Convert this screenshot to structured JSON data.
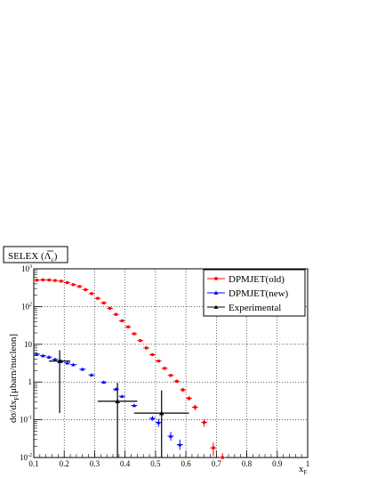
{
  "chart_data": {
    "type": "scatter",
    "title": "SELEX (",
    "title_particle": "Λ",
    "title_particle_sub": "c",
    "title_close": ")",
    "ylabel": "dσ/dx",
    "ylabel_sub": "F",
    "ylabel_rest": "[μbarn/nucleon]",
    "xlabel": "x",
    "xlabel_sub": "F",
    "xlim": [
      0.1,
      1.0
    ],
    "ylim": [
      0.01,
      1000
    ],
    "y_scale": "log",
    "grid": true,
    "legend_position": "top-right",
    "x_ticks": [
      {
        "value": 0.1,
        "label": "0.1"
      },
      {
        "value": 0.2,
        "label": "0.2"
      },
      {
        "value": 0.3,
        "label": "0.3"
      },
      {
        "value": 0.4,
        "label": "0.4"
      },
      {
        "value": 0.5,
        "label": "0.5"
      },
      {
        "value": 0.6,
        "label": "0.6"
      },
      {
        "value": 0.7,
        "label": "0.7"
      },
      {
        "value": 0.8,
        "label": "0.8"
      },
      {
        "value": 0.9,
        "label": "0.9"
      },
      {
        "value": 1.0,
        "label": "1"
      }
    ],
    "y_ticks": [
      {
        "value": 0.01,
        "base": "10",
        "exp": "-2"
      },
      {
        "value": 0.1,
        "base": "10",
        "exp": "-1"
      },
      {
        "value": 1,
        "base": "1",
        "exp": ""
      },
      {
        "value": 10,
        "base": "10",
        "exp": ""
      },
      {
        "value": 100,
        "base": "10",
        "exp": "2"
      },
      {
        "value": 1000,
        "base": "10",
        "exp": "3"
      }
    ],
    "series": [
      {
        "name": "DPMJET(old)",
        "color": "#ff0000",
        "marker": "square",
        "points": [
          {
            "x": 0.11,
            "y": 500,
            "xerr": 0.01,
            "ylo": 500,
            "yhi": 500
          },
          {
            "x": 0.13,
            "y": 510,
            "xerr": 0.01,
            "ylo": 510,
            "yhi": 510
          },
          {
            "x": 0.15,
            "y": 505,
            "xerr": 0.01,
            "ylo": 505,
            "yhi": 505
          },
          {
            "x": 0.17,
            "y": 490,
            "xerr": 0.01,
            "ylo": 490,
            "yhi": 490
          },
          {
            "x": 0.19,
            "y": 470,
            "xerr": 0.01,
            "ylo": 470,
            "yhi": 470
          },
          {
            "x": 0.21,
            "y": 430,
            "xerr": 0.01,
            "ylo": 430,
            "yhi": 430
          },
          {
            "x": 0.23,
            "y": 380,
            "xerr": 0.01,
            "ylo": 380,
            "yhi": 380
          },
          {
            "x": 0.25,
            "y": 340,
            "xerr": 0.01,
            "ylo": 340,
            "yhi": 340
          },
          {
            "x": 0.27,
            "y": 280,
            "xerr": 0.01,
            "ylo": 280,
            "yhi": 280
          },
          {
            "x": 0.29,
            "y": 220,
            "xerr": 0.01,
            "ylo": 220,
            "yhi": 220
          },
          {
            "x": 0.31,
            "y": 165,
            "xerr": 0.01,
            "ylo": 165,
            "yhi": 165
          },
          {
            "x": 0.33,
            "y": 125,
            "xerr": 0.01,
            "ylo": 125,
            "yhi": 125
          },
          {
            "x": 0.35,
            "y": 90,
            "xerr": 0.01,
            "ylo": 90,
            "yhi": 90
          },
          {
            "x": 0.37,
            "y": 62,
            "xerr": 0.01,
            "ylo": 62,
            "yhi": 62
          },
          {
            "x": 0.39,
            "y": 42,
            "xerr": 0.01,
            "ylo": 42,
            "yhi": 42
          },
          {
            "x": 0.41,
            "y": 29,
            "xerr": 0.01,
            "ylo": 29,
            "yhi": 29
          },
          {
            "x": 0.43,
            "y": 19,
            "xerr": 0.01,
            "ylo": 19,
            "yhi": 19
          },
          {
            "x": 0.45,
            "y": 12.5,
            "xerr": 0.01,
            "ylo": 12.5,
            "yhi": 12.5
          },
          {
            "x": 0.47,
            "y": 8,
            "xerr": 0.01,
            "ylo": 8,
            "yhi": 8
          },
          {
            "x": 0.49,
            "y": 5.3,
            "xerr": 0.01,
            "ylo": 5.3,
            "yhi": 5.3
          },
          {
            "x": 0.51,
            "y": 3.6,
            "xerr": 0.01,
            "ylo": 3.6,
            "yhi": 3.6
          },
          {
            "x": 0.53,
            "y": 2.3,
            "xerr": 0.01,
            "ylo": 2.3,
            "yhi": 2.3
          },
          {
            "x": 0.55,
            "y": 1.5,
            "xerr": 0.01,
            "ylo": 1.4,
            "yhi": 1.6
          },
          {
            "x": 0.57,
            "y": 1.05,
            "xerr": 0.01,
            "ylo": 0.95,
            "yhi": 1.15
          },
          {
            "x": 0.59,
            "y": 0.62,
            "xerr": 0.01,
            "ylo": 0.55,
            "yhi": 0.7
          },
          {
            "x": 0.61,
            "y": 0.37,
            "xerr": 0.01,
            "ylo": 0.32,
            "yhi": 0.42
          },
          {
            "x": 0.63,
            "y": 0.215,
            "xerr": 0.01,
            "ylo": 0.18,
            "yhi": 0.25
          },
          {
            "x": 0.66,
            "y": 0.085,
            "xerr": 0.01,
            "ylo": 0.065,
            "yhi": 0.105
          },
          {
            "x": 0.69,
            "y": 0.018,
            "xerr": 0.01,
            "ylo": 0.011,
            "yhi": 0.025
          },
          {
            "x": 0.72,
            "y": 0.0075,
            "xerr": 0.01,
            "ylo": 0.004,
            "yhi": 0.013
          }
        ]
      },
      {
        "name": "DPMJET(new)",
        "color": "#0000ff",
        "marker": "triangle",
        "points": [
          {
            "x": 0.11,
            "y": 5.5,
            "xerr": 0.01,
            "ylo": 5.5,
            "yhi": 5.5
          },
          {
            "x": 0.13,
            "y": 5.0,
            "xerr": 0.01,
            "ylo": 5.0,
            "yhi": 5.0
          },
          {
            "x": 0.15,
            "y": 4.6,
            "xerr": 0.01,
            "ylo": 4.6,
            "yhi": 4.6
          },
          {
            "x": 0.17,
            "y": 4.0,
            "xerr": 0.01,
            "ylo": 4.0,
            "yhi": 4.0
          },
          {
            "x": 0.19,
            "y": 3.6,
            "xerr": 0.01,
            "ylo": 3.6,
            "yhi": 3.6
          },
          {
            "x": 0.21,
            "y": 3.2,
            "xerr": 0.01,
            "ylo": 3.2,
            "yhi": 3.2
          },
          {
            "x": 0.23,
            "y": 2.9,
            "xerr": 0.01,
            "ylo": 2.9,
            "yhi": 2.9
          },
          {
            "x": 0.26,
            "y": 2.2,
            "xerr": 0.01,
            "ylo": 2.2,
            "yhi": 2.2
          },
          {
            "x": 0.29,
            "y": 1.55,
            "xerr": 0.01,
            "ylo": 1.55,
            "yhi": 1.55
          },
          {
            "x": 0.33,
            "y": 1.0,
            "xerr": 0.01,
            "ylo": 1.0,
            "yhi": 1.0
          },
          {
            "x": 0.37,
            "y": 0.65,
            "xerr": 0.01,
            "ylo": 0.65,
            "yhi": 0.65
          },
          {
            "x": 0.39,
            "y": 0.42,
            "xerr": 0.01,
            "ylo": 0.42,
            "yhi": 0.42
          },
          {
            "x": 0.43,
            "y": 0.24,
            "xerr": 0.01,
            "ylo": 0.24,
            "yhi": 0.24
          },
          {
            "x": 0.49,
            "y": 0.11,
            "xerr": 0.01,
            "ylo": 0.095,
            "yhi": 0.125
          },
          {
            "x": 0.51,
            "y": 0.085,
            "xerr": 0.01,
            "ylo": 0.065,
            "yhi": 0.105
          },
          {
            "x": 0.55,
            "y": 0.037,
            "xerr": 0.01,
            "ylo": 0.028,
            "yhi": 0.048
          },
          {
            "x": 0.58,
            "y": 0.022,
            "xerr": 0.01,
            "ylo": 0.016,
            "yhi": 0.03
          }
        ]
      },
      {
        "name": "Experimental",
        "color": "#000000",
        "marker": "triangle",
        "points": [
          {
            "x": 0.185,
            "y": 3.6,
            "xerr": 0.035,
            "ylo": 0.15,
            "yhi": 7.0
          },
          {
            "x": 0.375,
            "y": 0.31,
            "xerr": 0.065,
            "ylo": 0.01,
            "yhi": 0.95
          },
          {
            "x": 0.52,
            "y": 0.15,
            "xerr": 0.09,
            "ylo": 0.01,
            "yhi": 0.6
          }
        ]
      }
    ]
  }
}
